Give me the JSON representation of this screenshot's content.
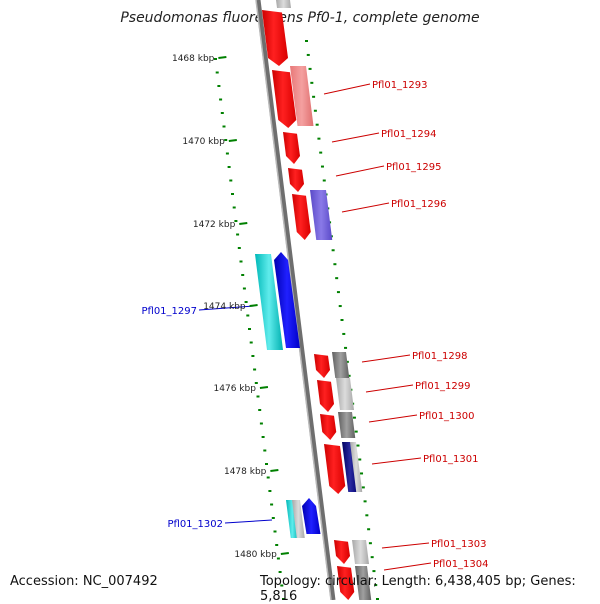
{
  "title": "Pseudomonas fluorescens Pf0-1, complete genome",
  "accession_text": "Accession: NC_007492",
  "topology_text": "Topology: circular; Length: 6,438,405 bp; Genes: 5,816",
  "colors": {
    "forward_strand": "#ff0000",
    "reverse_strand": "#0000ff",
    "gc_skew_dots": "#008000",
    "backbone": "#808080",
    "forward_label": "#cc0000",
    "reverse_label": "#0000cc",
    "cyan_feature": "#00c8c8"
  },
  "kbp_ticks": [
    "1468 kbp",
    "1470 kbp",
    "1472 kbp",
    "1474 kbp",
    "1476 kbp",
    "1478 kbp",
    "1480 kbp"
  ],
  "gene_labels": {
    "forward": [
      "Pfl01_1293",
      "Pfl01_1294",
      "Pfl01_1295",
      "Pfl01_1296",
      "Pfl01_1298",
      "Pfl01_1299",
      "Pfl01_1300",
      "Pfl01_1301",
      "Pfl01_1303",
      "Pfl01_1304"
    ],
    "reverse": [
      "Pfl01_1297",
      "Pfl01_1302"
    ]
  }
}
